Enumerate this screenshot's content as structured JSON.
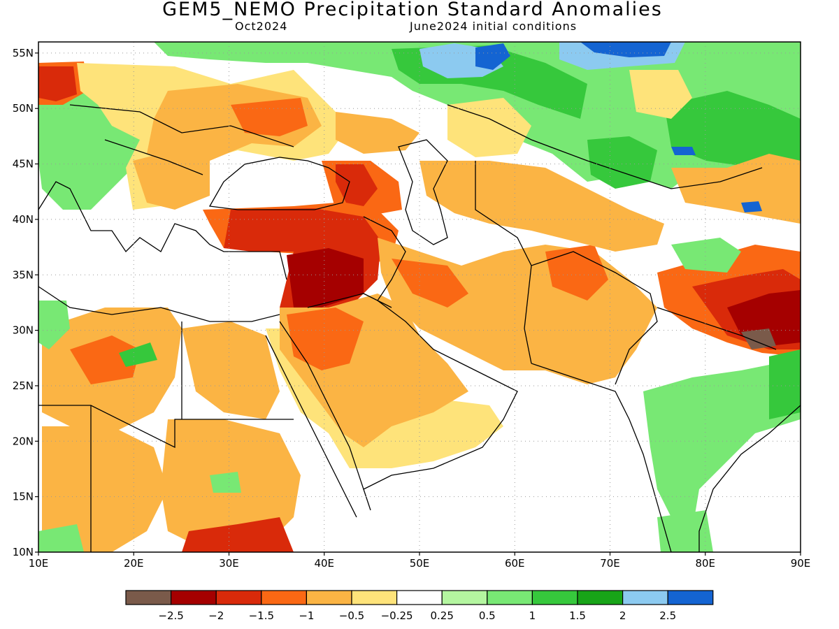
{
  "title": "GEM5_NEMO Precipitation Standard Anomalies",
  "valid_label": "Oct2024",
  "init_label": "June2024 initial conditions",
  "map": {
    "lon_range": [
      10,
      90
    ],
    "lat_range": [
      10,
      56
    ],
    "lon_ticks": [
      {
        "value": 10,
        "label": "10E"
      },
      {
        "value": 20,
        "label": "20E"
      },
      {
        "value": 30,
        "label": "30E"
      },
      {
        "value": 40,
        "label": "40E"
      },
      {
        "value": 50,
        "label": "50E"
      },
      {
        "value": 60,
        "label": "60E"
      },
      {
        "value": 70,
        "label": "70E"
      },
      {
        "value": 80,
        "label": "80E"
      },
      {
        "value": 90,
        "label": "90E"
      }
    ],
    "lat_ticks": [
      {
        "value": 10,
        "label": "10N"
      },
      {
        "value": 15,
        "label": "15N"
      },
      {
        "value": 20,
        "label": "20N"
      },
      {
        "value": 25,
        "label": "25N"
      },
      {
        "value": 30,
        "label": "30N"
      },
      {
        "value": 35,
        "label": "35N"
      },
      {
        "value": 40,
        "label": "40N"
      },
      {
        "value": 45,
        "label": "45N"
      },
      {
        "value": 50,
        "label": "50N"
      },
      {
        "value": 55,
        "label": "55N"
      }
    ],
    "colors": {
      "lt_-2.5": "#7a5a4a",
      "-2.5_-2": "#a50000",
      "-2_-1.5": "#d92a0a",
      "-1.5_-1": "#fa6814",
      "-1_-0.5": "#fbb444",
      "-0.5_-0.25": "#fee37a",
      "neutral": "#ffffff",
      "0.25_0.5": "#b4f6a0",
      "0.5_1": "#78e874",
      "1_1.5": "#36c83c",
      "1.5_2": "#18a418",
      "2_2.5": "#8ccaf0",
      "gt_2.5": "#1464d2"
    }
  },
  "legend": {
    "colors": [
      "#7a5a4a",
      "#a50000",
      "#d92a0a",
      "#fa6814",
      "#fbb444",
      "#fee37a",
      "#ffffff",
      "#b4f6a0",
      "#78e874",
      "#36c83c",
      "#18a418",
      "#8ccaf0",
      "#1464d2"
    ],
    "labels": [
      "−2.5",
      "−2",
      "−1.5",
      "−1",
      "−0.5",
      "−0.25",
      "0.25",
      "0.5",
      "1",
      "1.5",
      "2",
      "2.5"
    ]
  }
}
